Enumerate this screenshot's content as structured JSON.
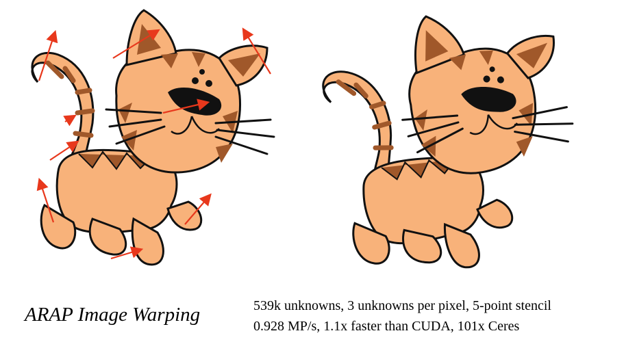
{
  "caption": {
    "title": "ARAP Image Warping",
    "stats_line1": "539k unknowns, 3 unknowns per pixel, 5-point stencil",
    "stats_line2": "0.928 MP/s, 1.1x faster than CUDA, 101x Ceres"
  },
  "colors": {
    "fur": "#f8b27a",
    "stripe": "#a0582a",
    "outline": "#111111",
    "arrow": "#e8381c",
    "nose": "#111111"
  },
  "panels": {
    "left": "original-cat-with-constraint-arrows",
    "right": "warped-cat"
  }
}
